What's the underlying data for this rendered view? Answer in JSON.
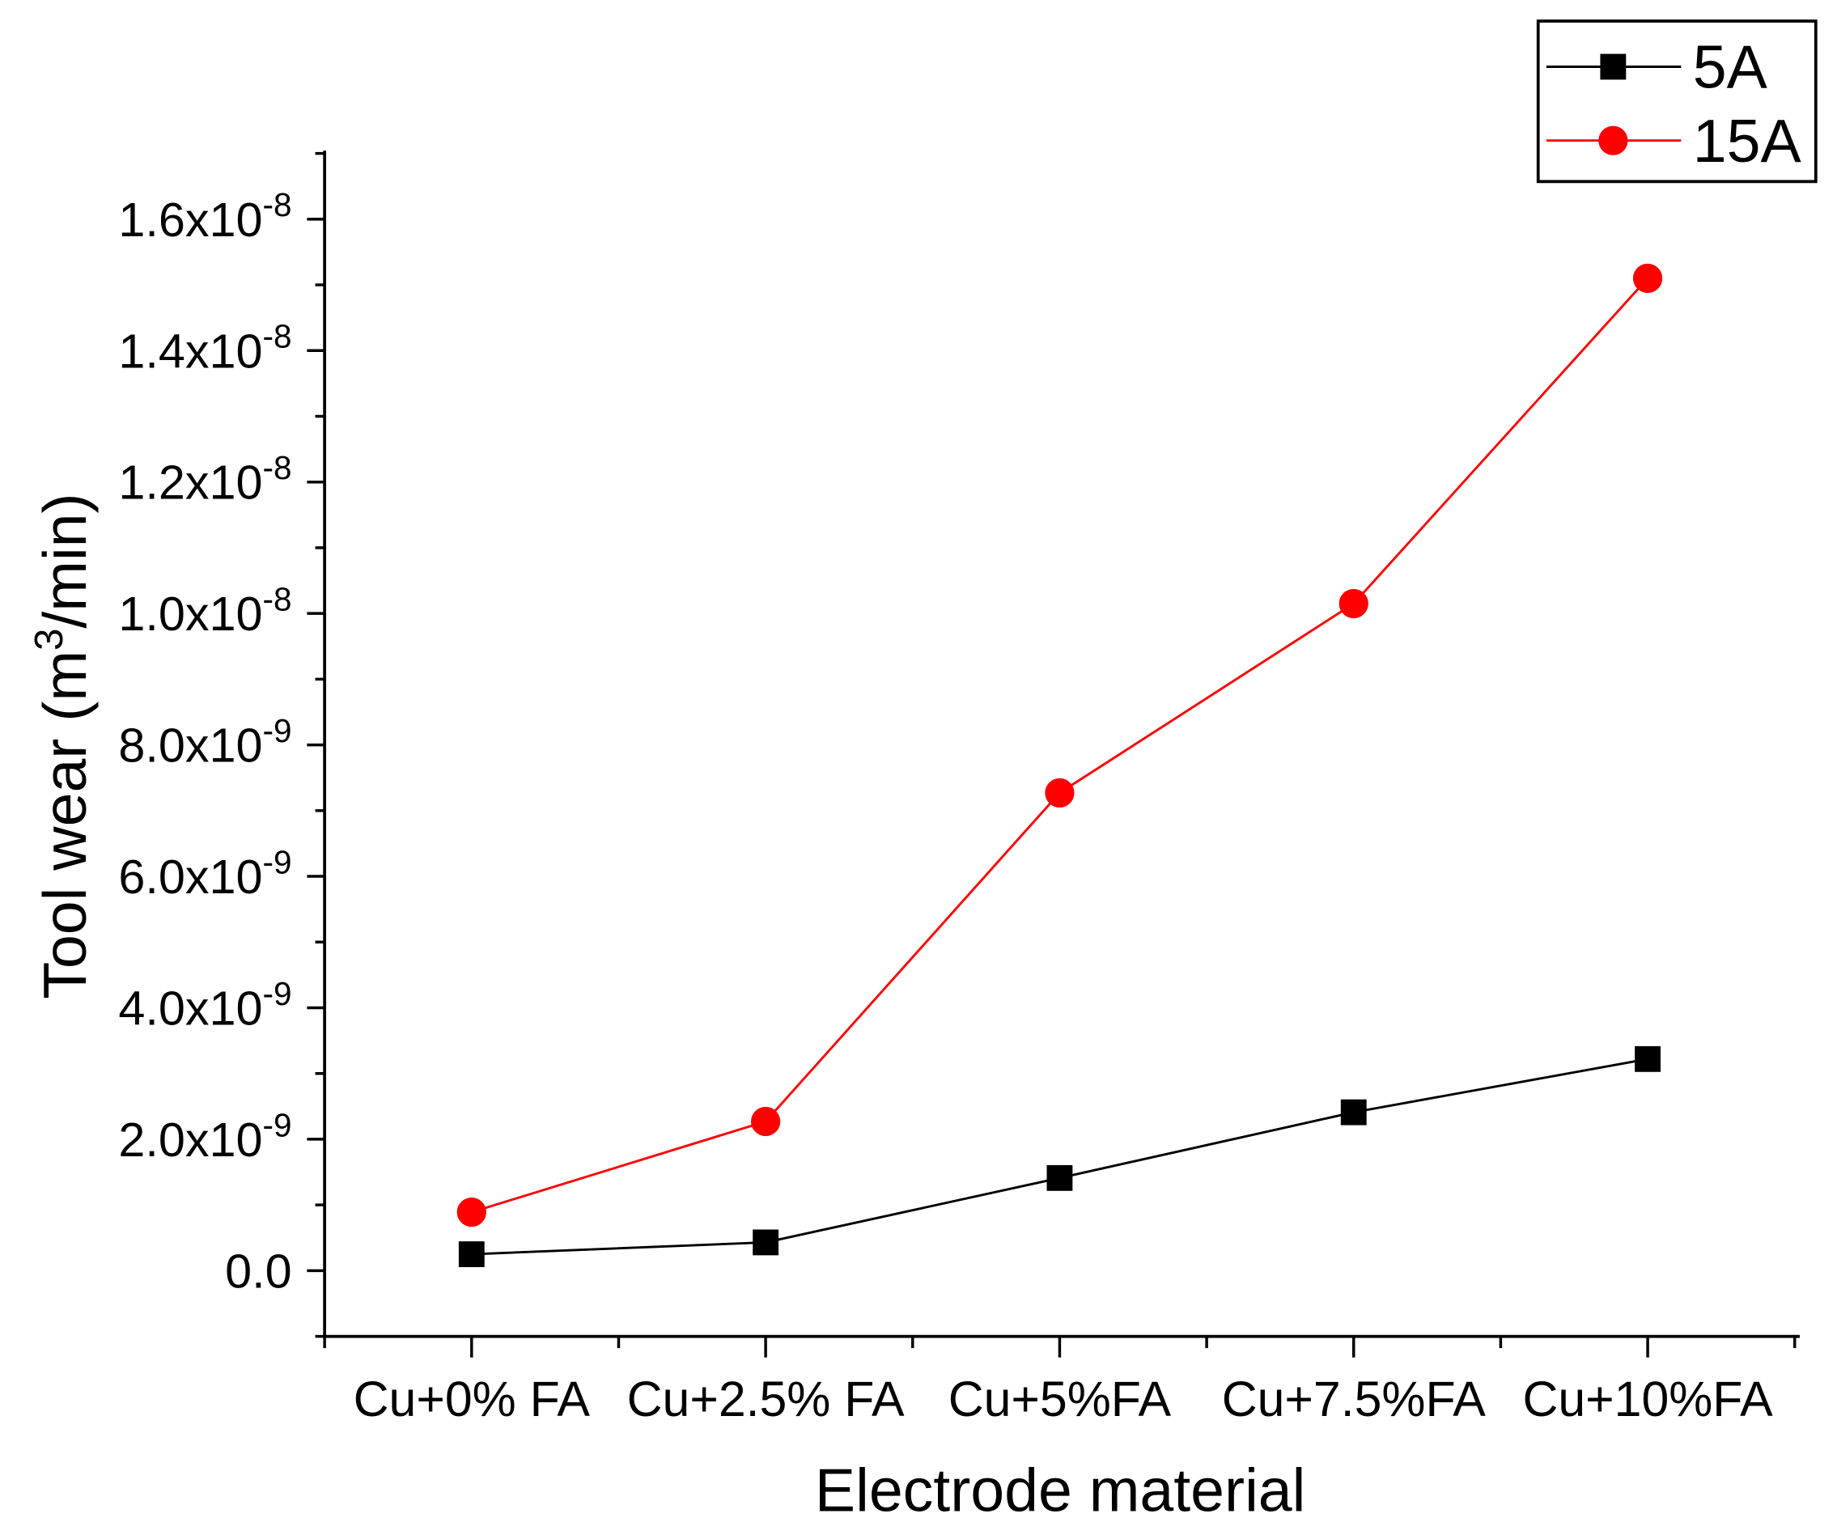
{
  "chart_data": {
    "type": "line",
    "title": "",
    "xlabel": "Electrode material",
    "ylabel": {
      "prefix": "Tool wear (m",
      "superscript": "3",
      "suffix": "/min)"
    },
    "categories": [
      "Cu+0% FA",
      "Cu+2.5% FA",
      "Cu+5%FA",
      "Cu+7.5%FA",
      "Cu+10%FA"
    ],
    "xlim": [
      0.5,
      5.5
    ],
    "ylim": [
      -1e-09,
      1.7e-08
    ],
    "yticks": [
      {
        "value": 0,
        "label": "0.0"
      },
      {
        "value": 2e-09,
        "label": "2.0x10",
        "exponent": "-9"
      },
      {
        "value": 4e-09,
        "label": "4.0x10",
        "exponent": "-9"
      },
      {
        "value": 6e-09,
        "label": "6.0x10",
        "exponent": "-9"
      },
      {
        "value": 8e-09,
        "label": "8.0x10",
        "exponent": "-9"
      },
      {
        "value": 1e-08,
        "label": "1.0x10",
        "exponent": "-8"
      },
      {
        "value": 1.2e-08,
        "label": "1.2x10",
        "exponent": "-8"
      },
      {
        "value": 1.4e-08,
        "label": "1.4x10",
        "exponent": "-8"
      },
      {
        "value": 1.6e-08,
        "label": "1.6x10",
        "exponent": "-8"
      }
    ],
    "series": [
      {
        "name": "5A",
        "color": "#000000",
        "marker": "square",
        "values": [
          2.5e-10,
          4.3e-10,
          1.41e-09,
          2.41e-09,
          3.22e-09
        ]
      },
      {
        "name": "15A",
        "color": "#ff0000",
        "marker": "circle",
        "values": [
          8.9e-10,
          2.27e-09,
          7.27e-09,
          1.015e-08,
          1.51e-08
        ]
      }
    ],
    "legend": {
      "position": "top-right",
      "frame": true
    },
    "grid": false
  }
}
